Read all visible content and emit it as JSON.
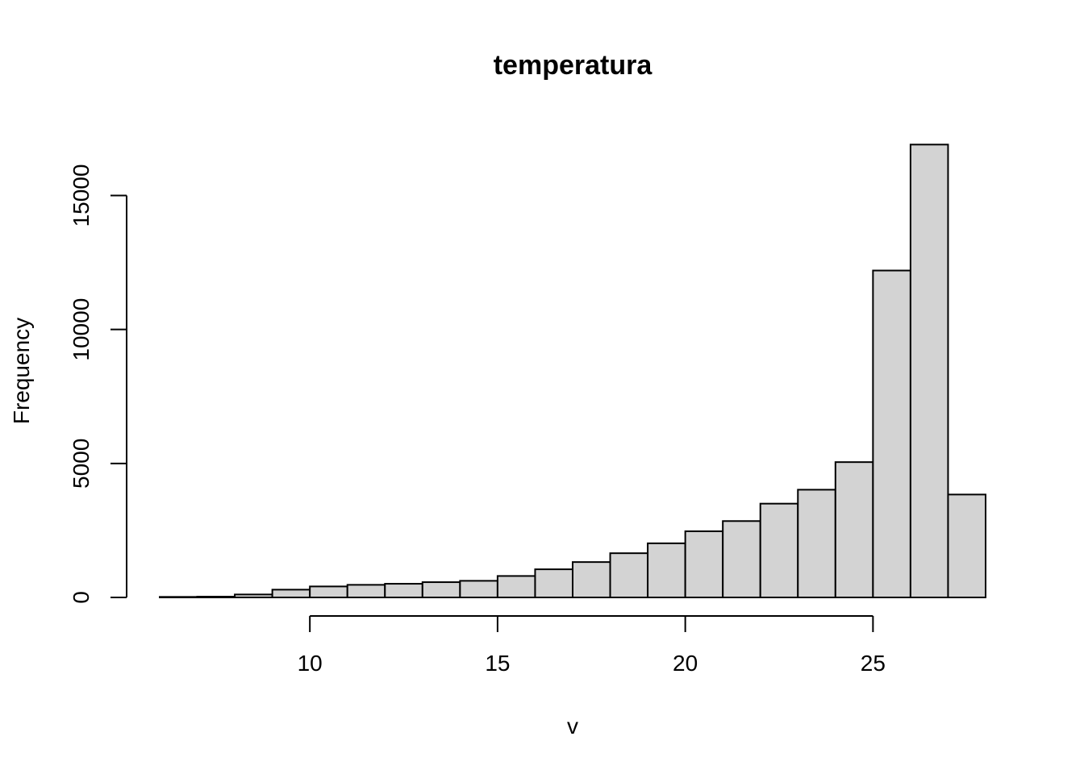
{
  "chart_data": {
    "type": "bar",
    "title": "temperatura",
    "xlabel": "v",
    "ylabel": "Frequency",
    "bar_fill": "#d3d3d3",
    "bar_stroke": "#000000",
    "grid": false,
    "legend": "none",
    "xlim": [
      6,
      28
    ],
    "ylim": [
      0,
      17000
    ],
    "x_axis_range": [
      10,
      25
    ],
    "x_ticks": [
      10,
      15,
      20,
      25
    ],
    "x_tick_labels": [
      "10",
      "15",
      "20",
      "25"
    ],
    "y_ticks": [
      0,
      5000,
      10000,
      15000
    ],
    "y_tick_labels": [
      "0",
      "5000",
      "10000",
      "15000"
    ],
    "bins": [
      {
        "x0": 6,
        "x1": 7,
        "count": 20
      },
      {
        "x0": 7,
        "x1": 8,
        "count": 30
      },
      {
        "x0": 8,
        "x1": 9,
        "count": 110
      },
      {
        "x0": 9,
        "x1": 10,
        "count": 290
      },
      {
        "x0": 10,
        "x1": 11,
        "count": 410
      },
      {
        "x0": 11,
        "x1": 12,
        "count": 470
      },
      {
        "x0": 12,
        "x1": 13,
        "count": 510
      },
      {
        "x0": 13,
        "x1": 14,
        "count": 570
      },
      {
        "x0": 14,
        "x1": 15,
        "count": 620
      },
      {
        "x0": 15,
        "x1": 16,
        "count": 800
      },
      {
        "x0": 16,
        "x1": 17,
        "count": 1050
      },
      {
        "x0": 17,
        "x1": 18,
        "count": 1320
      },
      {
        "x0": 18,
        "x1": 19,
        "count": 1650
      },
      {
        "x0": 19,
        "x1": 20,
        "count": 2020
      },
      {
        "x0": 20,
        "x1": 21,
        "count": 2470
      },
      {
        "x0": 21,
        "x1": 22,
        "count": 2850
      },
      {
        "x0": 22,
        "x1": 23,
        "count": 3500
      },
      {
        "x0": 23,
        "x1": 24,
        "count": 4020
      },
      {
        "x0": 24,
        "x1": 25,
        "count": 5050
      },
      {
        "x0": 25,
        "x1": 26,
        "count": 12200
      },
      {
        "x0": 26,
        "x1": 27,
        "count": 16900
      },
      {
        "x0": 27,
        "x1": 28,
        "count": 3840
      }
    ]
  }
}
